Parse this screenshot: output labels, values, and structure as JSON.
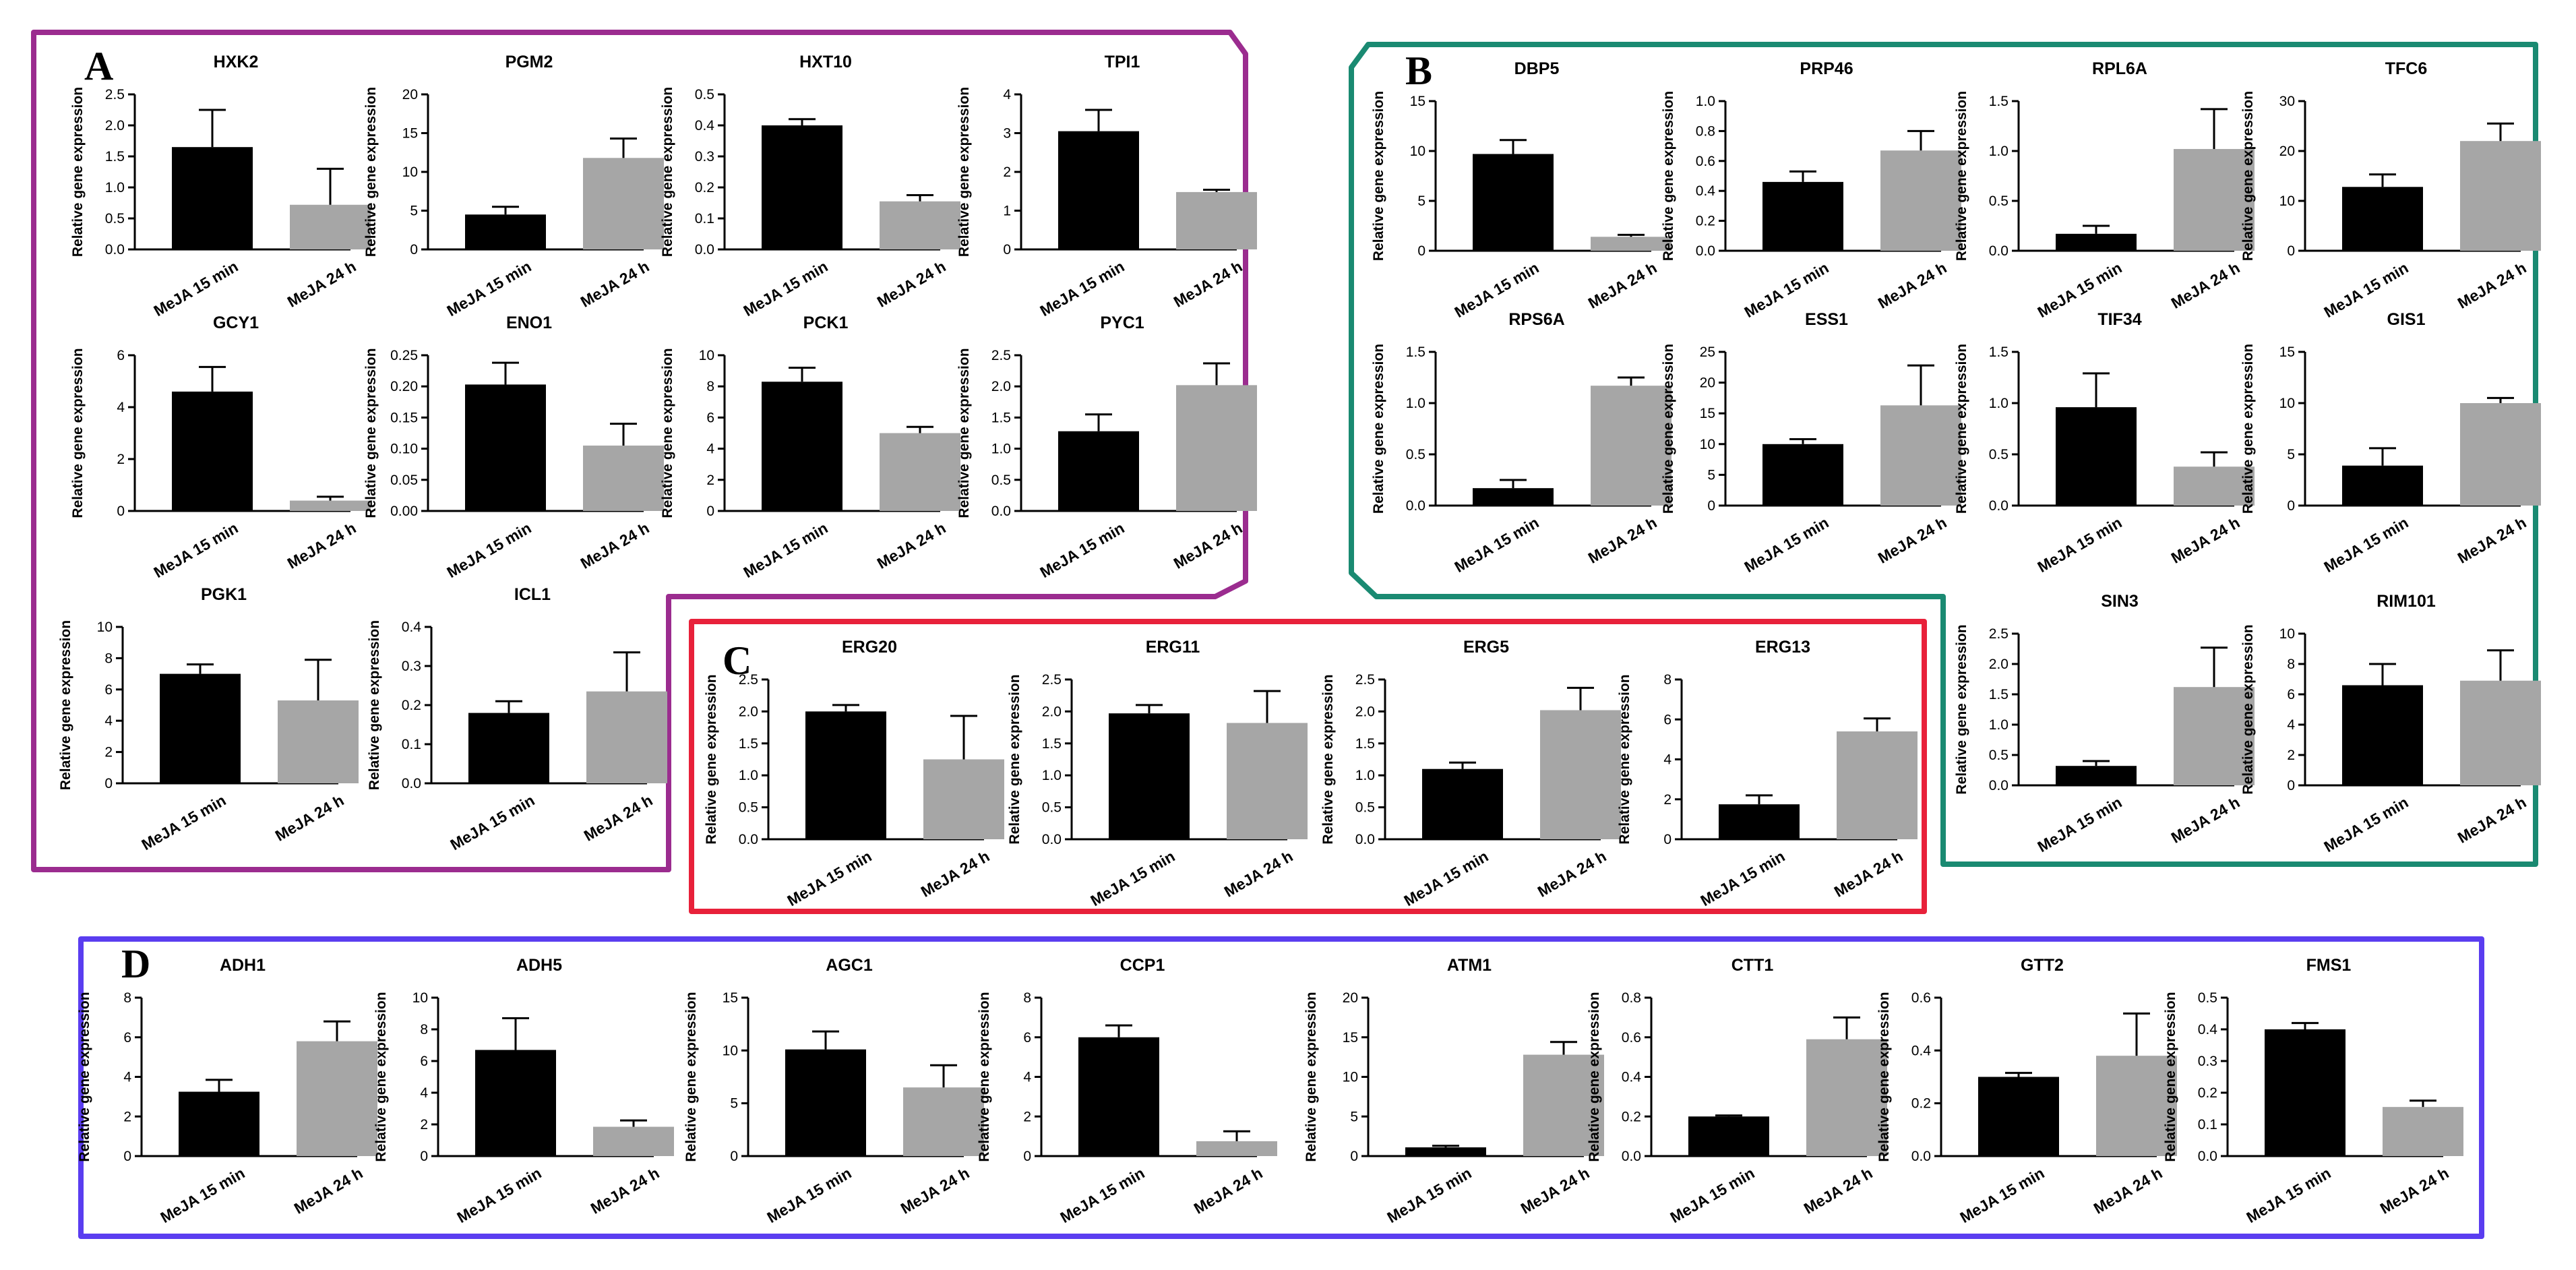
{
  "figure": {
    "colors": {
      "bar_15min": "#000000",
      "bar_24h": "#a6a6a6",
      "panel_A": "#9b2c8f",
      "panel_B": "#1a8a72",
      "panel_C": "#e8213a",
      "panel_D": "#5a3df0"
    }
  },
  "panels": [
    {
      "label": "A",
      "color_key": "panel_A"
    },
    {
      "label": "B",
      "color_key": "panel_B"
    },
    {
      "label": "C",
      "color_key": "panel_C"
    },
    {
      "label": "D",
      "color_key": "panel_D"
    }
  ],
  "chart_data": [
    {
      "panel": "A",
      "type": "bar",
      "title": "HXK2",
      "ylabel": "Relative gene expression",
      "categories": [
        "MeJA 15 min",
        "MeJA 24 h"
      ],
      "values": [
        1.65,
        0.72
      ],
      "errors": [
        0.6,
        0.58
      ],
      "ylim": [
        0,
        2.5
      ],
      "yticks": [
        "0.0",
        "0.5",
        "1.0",
        "1.5",
        "2.0",
        "2.5"
      ]
    },
    {
      "panel": "A",
      "type": "bar",
      "title": "PGM2",
      "ylabel": "Relative gene expression",
      "categories": [
        "MeJA 15 min",
        "MeJA 24 h"
      ],
      "values": [
        4.5,
        11.8
      ],
      "errors": [
        1.0,
        2.5
      ],
      "ylim": [
        0,
        20
      ],
      "yticks": [
        "0",
        "5",
        "10",
        "15",
        "20"
      ]
    },
    {
      "panel": "A",
      "type": "bar",
      "title": "HXT10",
      "ylabel": "Relative gene expression",
      "categories": [
        "MeJA 15 min",
        "MeJA 24 h"
      ],
      "values": [
        0.4,
        0.155
      ],
      "errors": [
        0.02,
        0.02
      ],
      "ylim": [
        0,
        0.5
      ],
      "yticks": [
        "0.0",
        "0.1",
        "0.2",
        "0.3",
        "0.4",
        "0.5"
      ]
    },
    {
      "panel": "A",
      "type": "bar",
      "title": "TPI1",
      "ylabel": "Relative gene expression",
      "categories": [
        "MeJA 15 min",
        "MeJA 24 h"
      ],
      "values": [
        3.05,
        1.48
      ],
      "errors": [
        0.55,
        0.06
      ],
      "ylim": [
        0,
        4
      ],
      "yticks": [
        "0",
        "1",
        "2",
        "3",
        "4"
      ]
    },
    {
      "panel": "A",
      "type": "bar",
      "title": "GCY1",
      "ylabel": "Relative gene expression",
      "categories": [
        "MeJA 15 min",
        "MeJA 24 h"
      ],
      "values": [
        4.6,
        0.4
      ],
      "errors": [
        0.95,
        0.15
      ],
      "ylim": [
        0,
        6
      ],
      "yticks": [
        "0",
        "2",
        "4",
        "6"
      ]
    },
    {
      "panel": "A",
      "type": "bar",
      "title": "ENO1",
      "ylabel": "Relative gene expression",
      "categories": [
        "MeJA 15 min",
        "MeJA 24 h"
      ],
      "values": [
        0.203,
        0.105
      ],
      "errors": [
        0.035,
        0.035
      ],
      "ylim": [
        0,
        0.25
      ],
      "yticks": [
        "0.00",
        "0.05",
        "0.10",
        "0.15",
        "0.20",
        "0.25"
      ]
    },
    {
      "panel": "A",
      "type": "bar",
      "title": "PCK1",
      "ylabel": "Relative gene expression",
      "categories": [
        "MeJA 15 min",
        "MeJA 24 h"
      ],
      "values": [
        8.3,
        5.0
      ],
      "errors": [
        0.9,
        0.4
      ],
      "ylim": [
        0,
        10
      ],
      "yticks": [
        "0",
        "2",
        "4",
        "6",
        "8",
        "10"
      ]
    },
    {
      "panel": "A",
      "type": "bar",
      "title": "PYC1",
      "ylabel": "Relative gene expression",
      "categories": [
        "MeJA 15 min",
        "MeJA 24 h"
      ],
      "values": [
        1.28,
        2.02
      ],
      "errors": [
        0.27,
        0.35
      ],
      "ylim": [
        0,
        2.5
      ],
      "yticks": [
        "0.0",
        "0.5",
        "1.0",
        "1.5",
        "2.0",
        "2.5"
      ]
    },
    {
      "panel": "A",
      "type": "bar",
      "title": "PGK1",
      "ylabel": "Relative gene expression",
      "categories": [
        "MeJA 15 min",
        "MeJA 24 h"
      ],
      "values": [
        7.0,
        5.3
      ],
      "errors": [
        0.6,
        2.6
      ],
      "ylim": [
        0,
        10
      ],
      "yticks": [
        "0",
        "2",
        "4",
        "6",
        "8",
        "10"
      ]
    },
    {
      "panel": "A",
      "type": "bar",
      "title": "ICL1",
      "ylabel": "Relative gene expression",
      "categories": [
        "MeJA 15 min",
        "MeJA 24 h"
      ],
      "values": [
        0.18,
        0.235
      ],
      "errors": [
        0.03,
        0.1
      ],
      "ylim": [
        0,
        0.4
      ],
      "yticks": [
        "0.0",
        "0.1",
        "0.2",
        "0.3",
        "0.4"
      ]
    },
    {
      "panel": "B",
      "type": "bar",
      "title": "DBP5",
      "ylabel": "Relative gene expression",
      "categories": [
        "MeJA 15 min",
        "MeJA 24 h"
      ],
      "values": [
        9.7,
        1.4
      ],
      "errors": [
        1.4,
        0.2
      ],
      "ylim": [
        0,
        15
      ],
      "yticks": [
        "0",
        "5",
        "10",
        "15"
      ]
    },
    {
      "panel": "B",
      "type": "bar",
      "title": "PRP46",
      "ylabel": "Relative gene expression",
      "categories": [
        "MeJA 15 min",
        "MeJA 24 h"
      ],
      "values": [
        0.46,
        0.67
      ],
      "errors": [
        0.07,
        0.13
      ],
      "ylim": [
        0,
        1.0
      ],
      "yticks": [
        "0.0",
        "0.2",
        "0.4",
        "0.6",
        "0.8",
        "1.0"
      ]
    },
    {
      "panel": "B",
      "type": "bar",
      "title": "RPL6A",
      "ylabel": "Relative gene expression",
      "categories": [
        "MeJA 15 min",
        "MeJA 24 h"
      ],
      "values": [
        0.17,
        1.02
      ],
      "errors": [
        0.08,
        0.4
      ],
      "ylim": [
        0,
        1.5
      ],
      "yticks": [
        "0.0",
        "0.5",
        "1.0",
        "1.5"
      ]
    },
    {
      "panel": "B",
      "type": "bar",
      "title": "TFC6",
      "ylabel": "Relative gene expression",
      "categories": [
        "MeJA 15 min",
        "MeJA 24 h"
      ],
      "values": [
        12.8,
        22.0
      ],
      "errors": [
        2.5,
        3.5
      ],
      "ylim": [
        0,
        30
      ],
      "yticks": [
        "0",
        "10",
        "20",
        "30"
      ]
    },
    {
      "panel": "B",
      "type": "bar",
      "title": "RPS6A",
      "ylabel": "Relative gene expression",
      "categories": [
        "MeJA 15 min",
        "MeJA 24 h"
      ],
      "values": [
        0.17,
        1.17
      ],
      "errors": [
        0.08,
        0.08
      ],
      "ylim": [
        0,
        1.5
      ],
      "yticks": [
        "0.0",
        "0.5",
        "1.0",
        "1.5"
      ]
    },
    {
      "panel": "B",
      "type": "bar",
      "title": "ESS1",
      "ylabel": "Relative gene expression",
      "categories": [
        "MeJA 15 min",
        "MeJA 24 h"
      ],
      "values": [
        10.0,
        16.3
      ],
      "errors": [
        0.8,
        6.5
      ],
      "ylim": [
        0,
        25
      ],
      "yticks": [
        "0",
        "5",
        "10",
        "15",
        "20",
        "25"
      ]
    },
    {
      "panel": "B",
      "type": "bar",
      "title": "TIF34",
      "ylabel": "Relative gene expression",
      "categories": [
        "MeJA 15 min",
        "MeJA 24 h"
      ],
      "values": [
        0.96,
        0.38
      ],
      "errors": [
        0.33,
        0.14
      ],
      "ylim": [
        0,
        1.5
      ],
      "yticks": [
        "0.0",
        "0.5",
        "1.0",
        "1.5"
      ]
    },
    {
      "panel": "B",
      "type": "bar",
      "title": "GIS1",
      "ylabel": "Relative gene expression",
      "categories": [
        "MeJA 15 min",
        "MeJA 24 h"
      ],
      "values": [
        3.9,
        10.0
      ],
      "errors": [
        1.7,
        0.5
      ],
      "ylim": [
        0,
        15
      ],
      "yticks": [
        "0",
        "5",
        "10",
        "15"
      ]
    },
    {
      "panel": "B",
      "type": "bar",
      "title": "SIN3",
      "ylabel": "Relative gene expression",
      "categories": [
        "MeJA 15 min",
        "MeJA 24 h"
      ],
      "values": [
        0.32,
        1.62
      ],
      "errors": [
        0.08,
        0.65
      ],
      "ylim": [
        0,
        2.5
      ],
      "yticks": [
        "0.0",
        "0.5",
        "1.0",
        "1.5",
        "2.0",
        "2.5"
      ]
    },
    {
      "panel": "B",
      "type": "bar",
      "title": "RIM101",
      "ylabel": "Relative gene expression",
      "categories": [
        "MeJA 15 min",
        "MeJA 24 h"
      ],
      "values": [
        6.6,
        6.9
      ],
      "errors": [
        1.4,
        2.0
      ],
      "ylim": [
        0,
        10
      ],
      "yticks": [
        "0",
        "2",
        "4",
        "6",
        "8",
        "10"
      ]
    },
    {
      "panel": "C",
      "type": "bar",
      "title": "ERG20",
      "ylabel": "Relative gene expression",
      "categories": [
        "MeJA 15 min",
        "MeJA 24 h"
      ],
      "values": [
        2.0,
        1.25
      ],
      "errors": [
        0.1,
        0.68
      ],
      "ylim": [
        0,
        2.5
      ],
      "yticks": [
        "0.0",
        "0.5",
        "1.0",
        "1.5",
        "2.0",
        "2.5"
      ]
    },
    {
      "panel": "C",
      "type": "bar",
      "title": "ERG11",
      "ylabel": "Relative gene expression",
      "categories": [
        "MeJA 15 min",
        "MeJA 24 h"
      ],
      "values": [
        1.97,
        1.82
      ],
      "errors": [
        0.13,
        0.5
      ],
      "ylim": [
        0,
        2.5
      ],
      "yticks": [
        "0.0",
        "0.5",
        "1.0",
        "1.5",
        "2.0",
        "2.5"
      ]
    },
    {
      "panel": "C",
      "type": "bar",
      "title": "ERG5",
      "ylabel": "Relative gene expression",
      "categories": [
        "MeJA 15 min",
        "MeJA 24 h"
      ],
      "values": [
        1.1,
        2.02
      ],
      "errors": [
        0.1,
        0.35
      ],
      "ylim": [
        0,
        2.5
      ],
      "yticks": [
        "0.0",
        "0.5",
        "1.0",
        "1.5",
        "2.0",
        "2.5"
      ]
    },
    {
      "panel": "C",
      "type": "bar",
      "title": "ERG13",
      "ylabel": "Relative gene expression",
      "categories": [
        "MeJA 15 min",
        "MeJA 24 h"
      ],
      "values": [
        1.75,
        5.4
      ],
      "errors": [
        0.45,
        0.65
      ],
      "ylim": [
        0,
        8
      ],
      "yticks": [
        "0",
        "2",
        "4",
        "6",
        "8"
      ]
    },
    {
      "panel": "D",
      "type": "bar",
      "title": "ADH1",
      "ylabel": "Relative gene expression",
      "categories": [
        "MeJA 15 min",
        "MeJA 24 h"
      ],
      "values": [
        3.25,
        5.8
      ],
      "errors": [
        0.6,
        1.0
      ],
      "ylim": [
        0,
        8
      ],
      "yticks": [
        "0",
        "2",
        "4",
        "6",
        "8"
      ]
    },
    {
      "panel": "D",
      "type": "bar",
      "title": "ADH5",
      "ylabel": "Relative gene expression",
      "categories": [
        "MeJA 15 min",
        "MeJA 24 h"
      ],
      "values": [
        6.7,
        1.85
      ],
      "errors": [
        2.0,
        0.4
      ],
      "ylim": [
        0,
        10
      ],
      "yticks": [
        "0",
        "2",
        "4",
        "6",
        "8",
        "10"
      ]
    },
    {
      "panel": "D",
      "type": "bar",
      "title": "AGC1",
      "ylabel": "Relative gene expression",
      "categories": [
        "MeJA 15 min",
        "MeJA 24 h"
      ],
      "values": [
        10.1,
        6.5
      ],
      "errors": [
        1.7,
        2.1
      ],
      "ylim": [
        0,
        15
      ],
      "yticks": [
        "0",
        "5",
        "10",
        "15"
      ]
    },
    {
      "panel": "D",
      "type": "bar",
      "title": "CCP1",
      "ylabel": "Relative gene expression",
      "categories": [
        "MeJA 15 min",
        "MeJA 24 h"
      ],
      "values": [
        6.0,
        0.75
      ],
      "errors": [
        0.6,
        0.5
      ],
      "ylim": [
        0,
        8
      ],
      "yticks": [
        "0",
        "2",
        "4",
        "6",
        "8"
      ]
    },
    {
      "panel": "D",
      "type": "bar",
      "title": "ATM1",
      "ylabel": "Relative gene expression",
      "categories": [
        "MeJA 15 min",
        "MeJA 24 h"
      ],
      "values": [
        1.1,
        12.8
      ],
      "errors": [
        0.2,
        1.6
      ],
      "ylim": [
        0,
        20
      ],
      "yticks": [
        "0",
        "5",
        "10",
        "15",
        "20"
      ]
    },
    {
      "panel": "D",
      "type": "bar",
      "title": "CTT1",
      "ylabel": "Relative gene expression",
      "categories": [
        "MeJA 15 min",
        "MeJA 24 h"
      ],
      "values": [
        0.2,
        0.59
      ],
      "errors": [
        0.005,
        0.11
      ],
      "ylim": [
        0,
        0.8
      ],
      "yticks": [
        "0.0",
        "0.2",
        "0.4",
        "0.6",
        "0.8"
      ]
    },
    {
      "panel": "D",
      "type": "bar",
      "title": "GTT2",
      "ylabel": "Relative gene expression",
      "categories": [
        "MeJA 15 min",
        "MeJA 24 h"
      ],
      "values": [
        0.3,
        0.38
      ],
      "errors": [
        0.015,
        0.16
      ],
      "ylim": [
        0,
        0.6
      ],
      "yticks": [
        "0.0",
        "0.2",
        "0.4",
        "0.6"
      ]
    },
    {
      "panel": "D",
      "type": "bar",
      "title": "FMS1",
      "ylabel": "Relative gene expression",
      "categories": [
        "MeJA 15 min",
        "MeJA 24 h"
      ],
      "values": [
        0.4,
        0.155
      ],
      "errors": [
        0.02,
        0.02
      ],
      "ylim": [
        0,
        0.5
      ],
      "yticks": [
        "0.0",
        "0.1",
        "0.2",
        "0.3",
        "0.4",
        "0.5"
      ]
    }
  ]
}
